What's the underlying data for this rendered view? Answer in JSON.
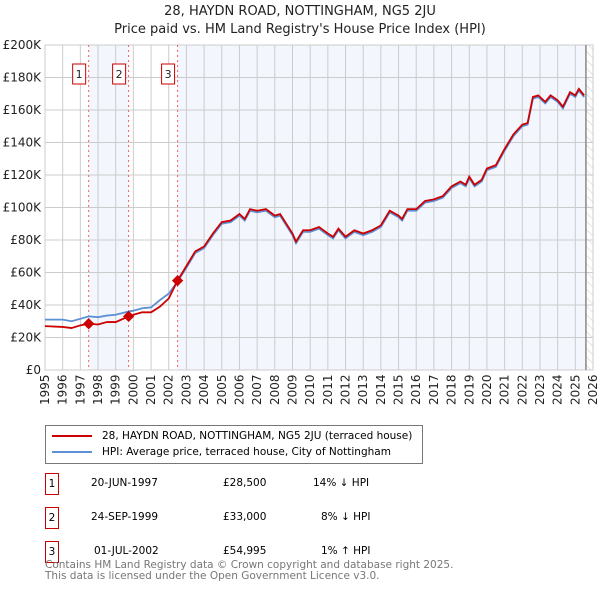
{
  "chart_data": {
    "type": "line",
    "title": "28, HAYDN ROAD, NOTTINGHAM, NG5 2JU",
    "subtitle": "Price paid vs. HM Land Registry's House Price Index (HPI)",
    "xlim": [
      1995,
      2026
    ],
    "ylim": [
      0,
      200000
    ],
    "yticks": [
      0,
      20000,
      40000,
      60000,
      80000,
      100000,
      120000,
      140000,
      160000,
      180000,
      200000
    ],
    "ytick_labels": [
      "£0",
      "£20K",
      "£40K",
      "£60K",
      "£80K",
      "£100K",
      "£120K",
      "£140K",
      "£160K",
      "£180K",
      "£200K"
    ],
    "xticks": [
      "1995",
      "1996",
      "1997",
      "1998",
      "1999",
      "2000",
      "2001",
      "2002",
      "2003",
      "2004",
      "2005",
      "2006",
      "2007",
      "2008",
      "2009",
      "2010",
      "2011",
      "2012",
      "2013",
      "2014",
      "2015",
      "2016",
      "2017",
      "2018",
      "2019",
      "2020",
      "2021",
      "2022",
      "2023",
      "2024",
      "2025",
      "2026"
    ],
    "grid": true,
    "series": [
      {
        "name": "28, HAYDN ROAD, NOTTINGHAM, NG5 2JU (terraced house)",
        "color": "#cc0000",
        "x": [
          1995,
          1996,
          1996.5,
          1997,
          1997.47,
          1998,
          1998.5,
          1999,
          1999.73,
          2000,
          2000.5,
          2001,
          2001.5,
          2002,
          2002.5,
          2003,
          2003.5,
          2004,
          2004.5,
          2005,
          2005.5,
          2006,
          2006.3,
          2006.6,
          2007,
          2007.5,
          2008,
          2008.3,
          2009,
          2009.2,
          2009.6,
          2010,
          2010.5,
          2011,
          2011.3,
          2011.6,
          2012,
          2012.5,
          2013,
          2013.5,
          2014,
          2014.5,
          2015,
          2015.2,
          2015.5,
          2016,
          2016.5,
          2017,
          2017.5,
          2018,
          2018.5,
          2018.8,
          2019,
          2019.3,
          2019.7,
          2020,
          2020.5,
          2021,
          2021.5,
          2022,
          2022.3,
          2022.6,
          2022.9,
          2023.3,
          2023.6,
          2024,
          2024.3,
          2024.7,
          2025,
          2025.2,
          2025.5
        ],
        "y": [
          27000,
          26500,
          25800,
          27500,
          28500,
          28000,
          29500,
          29500,
          33000,
          34000,
          35500,
          35500,
          39000,
          44000,
          55000,
          64000,
          73000,
          76000,
          84000,
          91000,
          92000,
          96000,
          93000,
          99000,
          98000,
          99000,
          95000,
          96000,
          84000,
          79000,
          86000,
          86000,
          88000,
          84000,
          82000,
          87000,
          82000,
          86000,
          84000,
          86000,
          89000,
          98000,
          95000,
          93000,
          99000,
          99000,
          104000,
          105000,
          107000,
          113000,
          116000,
          114000,
          119000,
          114000,
          117000,
          124000,
          126000,
          136000,
          145000,
          151000,
          152000,
          168000,
          169000,
          165000,
          169000,
          166000,
          162000,
          171000,
          169000,
          173000,
          169000
        ]
      },
      {
        "name": "HPI: Average price, terraced house, City of Nottingham",
        "color": "#5b8fd6",
        "x": [
          1995,
          1996,
          1996.5,
          1997,
          1997.47,
          1998,
          1998.5,
          1999,
          1999.73,
          2000,
          2000.5,
          2001,
          2001.5,
          2002,
          2002.5,
          2003,
          2003.5,
          2004,
          2004.5,
          2005,
          2005.5,
          2006,
          2006.3,
          2006.6,
          2007,
          2007.5,
          2008,
          2008.3,
          2009,
          2009.2,
          2009.6,
          2010,
          2010.5,
          2011,
          2011.3,
          2011.6,
          2012,
          2012.5,
          2013,
          2013.5,
          2014,
          2014.5,
          2015,
          2015.2,
          2015.5,
          2016,
          2016.5,
          2017,
          2017.5,
          2018,
          2018.5,
          2018.8,
          2019,
          2019.3,
          2019.7,
          2020,
          2020.5,
          2021,
          2021.5,
          2022,
          2022.3,
          2022.6,
          2022.9,
          2023.3,
          2023.6,
          2024,
          2024.3,
          2024.7,
          2025,
          2025.2,
          2025.5
        ],
        "y": [
          31000,
          31000,
          30000,
          31500,
          33000,
          32500,
          33500,
          34000,
          36000,
          36500,
          38000,
          38500,
          43000,
          47000,
          54500,
          63000,
          72000,
          75000,
          83000,
          90000,
          91000,
          95000,
          92000,
          98000,
          97000,
          98000,
          94000,
          95000,
          83000,
          78000,
          85000,
          85000,
          87000,
          83000,
          81000,
          86000,
          81000,
          85000,
          83000,
          85000,
          88000,
          97000,
          94000,
          92000,
          98000,
          98000,
          103000,
          104000,
          106000,
          112000,
          115000,
          113000,
          118000,
          113000,
          116000,
          123000,
          125000,
          135000,
          144000,
          150000,
          151000,
          167000,
          168000,
          164000,
          168000,
          165000,
          161000,
          170000,
          168000,
          172000,
          168000
        ]
      }
    ],
    "sales": [
      {
        "num": "1",
        "x": 1997.47,
        "price": 28500,
        "date": "20-JUN-1997",
        "price_label": "£28,500",
        "hpi": "14% ↓ HPI"
      },
      {
        "num": "2",
        "x": 1999.73,
        "price": 33000,
        "date": "24-SEP-1999",
        "price_label": "£33,000",
        "hpi": "8% ↓ HPI"
      },
      {
        "num": "3",
        "x": 2002.5,
        "price": 54995,
        "date": "01-JUL-2002",
        "price_label": "£54,995",
        "hpi": "1% ↑ HPI"
      }
    ],
    "forecast_start": 2025.6
  },
  "footer": [
    "Contains HM Land Registry data © Crown copyright and database right 2025.",
    "This data is licensed under the Open Government Licence v3.0."
  ]
}
